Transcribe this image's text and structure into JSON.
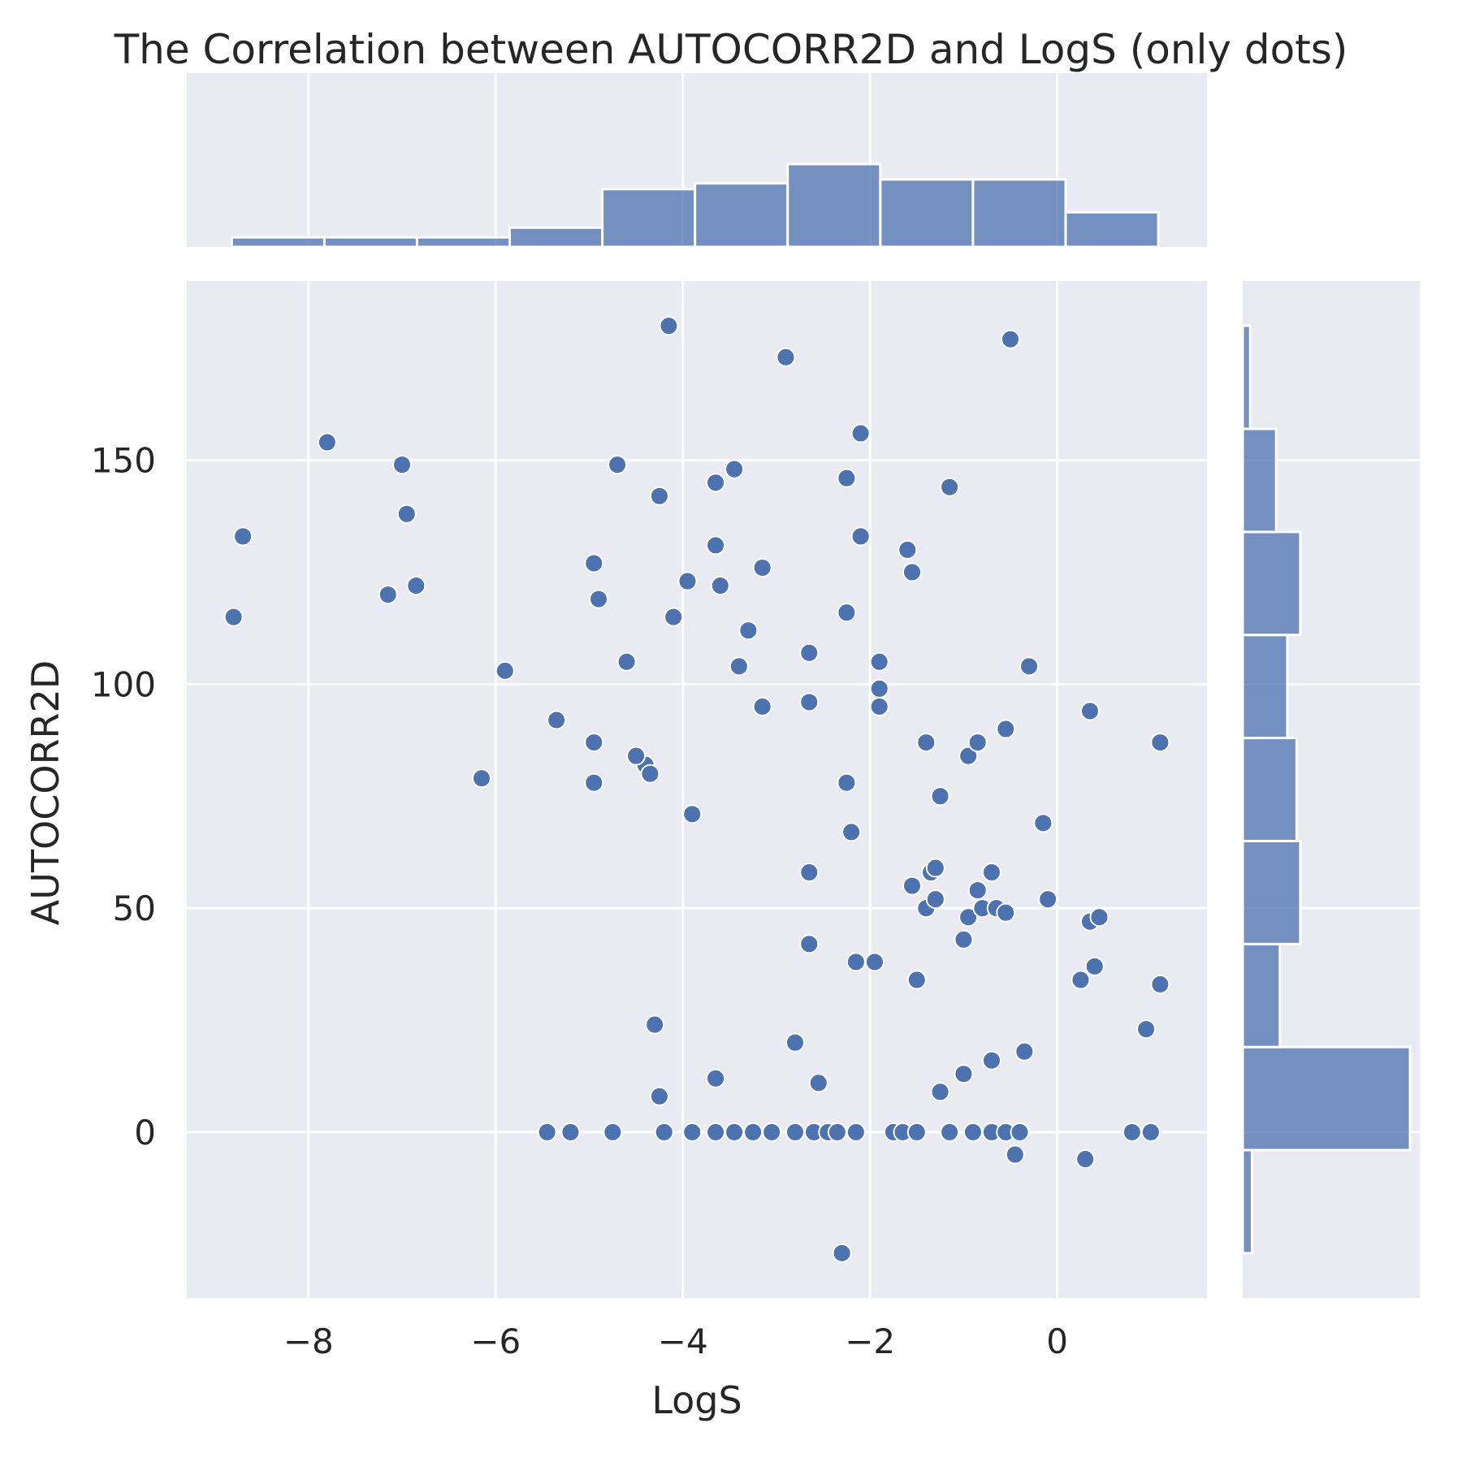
{
  "chart_data": {
    "type": "scatter",
    "title": "The Correlation between AUTOCORR2D and LogS (only dots)",
    "xlabel": "LogS",
    "ylabel": "AUTOCORR2D",
    "xlim": [
      -9.3,
      1.6
    ],
    "ylim": [
      -37,
      190
    ],
    "xticks": [
      -8,
      -6,
      -4,
      -2,
      0
    ],
    "xtick_labels": [
      "−8",
      "−6",
      "−4",
      "−2",
      "0"
    ],
    "yticks": [
      0,
      50,
      100,
      150
    ],
    "ytick_labels": [
      "0",
      "50",
      "100",
      "150"
    ],
    "grid": true,
    "marginal_histograms": true,
    "colors": {
      "background": "#eaeaf2",
      "grid": "#ffffff",
      "point": "#4c72b0",
      "hist": "#4c72b0"
    },
    "points": [
      {
        "x": -8.8,
        "y": 115
      },
      {
        "x": -8.7,
        "y": 133
      },
      {
        "x": -7.8,
        "y": 154
      },
      {
        "x": -7.0,
        "y": 149
      },
      {
        "x": -7.15,
        "y": 120
      },
      {
        "x": -6.95,
        "y": 138
      },
      {
        "x": -6.85,
        "y": 122
      },
      {
        "x": -6.15,
        "y": 79
      },
      {
        "x": -5.9,
        "y": 103
      },
      {
        "x": -5.35,
        "y": 92
      },
      {
        "x": -5.45,
        "y": 0
      },
      {
        "x": -5.2,
        "y": 0
      },
      {
        "x": -4.95,
        "y": 127
      },
      {
        "x": -4.95,
        "y": 87
      },
      {
        "x": -4.95,
        "y": 78
      },
      {
        "x": -4.9,
        "y": 119
      },
      {
        "x": -4.7,
        "y": 149
      },
      {
        "x": -4.75,
        "y": 0
      },
      {
        "x": -4.6,
        "y": 105
      },
      {
        "x": -4.4,
        "y": 82
      },
      {
        "x": -4.5,
        "y": 84
      },
      {
        "x": -4.35,
        "y": 80
      },
      {
        "x": -4.3,
        "y": 24
      },
      {
        "x": -4.25,
        "y": 142
      },
      {
        "x": -4.25,
        "y": 8
      },
      {
        "x": -4.2,
        "y": 0
      },
      {
        "x": -4.15,
        "y": 180
      },
      {
        "x": -4.1,
        "y": 115
      },
      {
        "x": -3.95,
        "y": 123
      },
      {
        "x": -3.9,
        "y": 71
      },
      {
        "x": -3.9,
        "y": 0
      },
      {
        "x": -3.65,
        "y": 131
      },
      {
        "x": -3.65,
        "y": 145
      },
      {
        "x": -3.65,
        "y": 12
      },
      {
        "x": -3.65,
        "y": 0
      },
      {
        "x": -3.6,
        "y": 122
      },
      {
        "x": -3.45,
        "y": 148
      },
      {
        "x": -3.45,
        "y": 0
      },
      {
        "x": -3.4,
        "y": 104
      },
      {
        "x": -3.3,
        "y": 112
      },
      {
        "x": -3.25,
        "y": 0
      },
      {
        "x": -3.15,
        "y": 126
      },
      {
        "x": -3.15,
        "y": 95
      },
      {
        "x": -3.05,
        "y": 0
      },
      {
        "x": -2.9,
        "y": 173
      },
      {
        "x": -2.8,
        "y": 20
      },
      {
        "x": -2.8,
        "y": 0
      },
      {
        "x": -2.65,
        "y": 107
      },
      {
        "x": -2.65,
        "y": 96
      },
      {
        "x": -2.65,
        "y": 58
      },
      {
        "x": -2.65,
        "y": 42
      },
      {
        "x": -2.6,
        "y": 0
      },
      {
        "x": -2.55,
        "y": 11
      },
      {
        "x": -2.45,
        "y": 0
      },
      {
        "x": -2.35,
        "y": 0
      },
      {
        "x": -2.3,
        "y": -27
      },
      {
        "x": -2.25,
        "y": 146
      },
      {
        "x": -2.25,
        "y": 116
      },
      {
        "x": -2.25,
        "y": 78
      },
      {
        "x": -2.2,
        "y": 67
      },
      {
        "x": -2.15,
        "y": 38
      },
      {
        "x": -2.15,
        "y": 0
      },
      {
        "x": -2.1,
        "y": 156
      },
      {
        "x": -2.1,
        "y": 133
      },
      {
        "x": -1.95,
        "y": 38
      },
      {
        "x": -1.9,
        "y": 105
      },
      {
        "x": -1.9,
        "y": 99
      },
      {
        "x": -1.9,
        "y": 95
      },
      {
        "x": -1.75,
        "y": 0
      },
      {
        "x": -1.65,
        "y": 0
      },
      {
        "x": -1.6,
        "y": 130
      },
      {
        "x": -1.55,
        "y": 125
      },
      {
        "x": -1.55,
        "y": 55
      },
      {
        "x": -1.5,
        "y": 0
      },
      {
        "x": -1.5,
        "y": 34
      },
      {
        "x": -1.4,
        "y": 87
      },
      {
        "x": -1.4,
        "y": 50
      },
      {
        "x": -1.35,
        "y": 58
      },
      {
        "x": -1.3,
        "y": 59
      },
      {
        "x": -1.3,
        "y": 52
      },
      {
        "x": -1.25,
        "y": 75
      },
      {
        "x": -1.25,
        "y": 9
      },
      {
        "x": -1.15,
        "y": 144
      },
      {
        "x": -1.15,
        "y": 0
      },
      {
        "x": -1.0,
        "y": 43
      },
      {
        "x": -1.0,
        "y": 13
      },
      {
        "x": -0.95,
        "y": 84
      },
      {
        "x": -0.95,
        "y": 48
      },
      {
        "x": -0.9,
        "y": 0
      },
      {
        "x": -0.85,
        "y": 87
      },
      {
        "x": -0.85,
        "y": 54
      },
      {
        "x": -0.8,
        "y": 50
      },
      {
        "x": -0.7,
        "y": 58
      },
      {
        "x": -0.7,
        "y": 16
      },
      {
        "x": -0.7,
        "y": 0
      },
      {
        "x": -0.65,
        "y": 50
      },
      {
        "x": -0.55,
        "y": 90
      },
      {
        "x": -0.55,
        "y": 49
      },
      {
        "x": -0.55,
        "y": 0
      },
      {
        "x": -0.5,
        "y": 177
      },
      {
        "x": -0.45,
        "y": -5
      },
      {
        "x": -0.4,
        "y": 0
      },
      {
        "x": -0.35,
        "y": 18
      },
      {
        "x": -0.3,
        "y": 104
      },
      {
        "x": -0.15,
        "y": 69
      },
      {
        "x": -0.1,
        "y": 52
      },
      {
        "x": 0.25,
        "y": 34
      },
      {
        "x": 0.3,
        "y": -6
      },
      {
        "x": 0.35,
        "y": 94
      },
      {
        "x": 0.35,
        "y": 47
      },
      {
        "x": 0.4,
        "y": 37
      },
      {
        "x": 0.45,
        "y": 48
      },
      {
        "x": 0.8,
        "y": 0
      },
      {
        "x": 0.95,
        "y": 23
      },
      {
        "x": 1.0,
        "y": 0
      },
      {
        "x": 1.1,
        "y": 33
      },
      {
        "x": 1.1,
        "y": 87
      }
    ],
    "hist_x": {
      "bins": [
        -8.82,
        -7.83,
        -6.84,
        -5.85,
        -4.86,
        -3.87,
        -2.88,
        -1.89,
        -0.9,
        0.09,
        1.08
      ],
      "counts": [
        1,
        1,
        1,
        2,
        6,
        6.6,
        8.6,
        7,
        7,
        3.6
      ]
    },
    "hist_y": {
      "bins": [
        -27,
        -4,
        19,
        42,
        65,
        88,
        111,
        134,
        157,
        180
      ],
      "counts": [
        0.5,
        9,
        2,
        3.1,
        2.9,
        2.4,
        3.1,
        1.8,
        0.4
      ]
    }
  }
}
